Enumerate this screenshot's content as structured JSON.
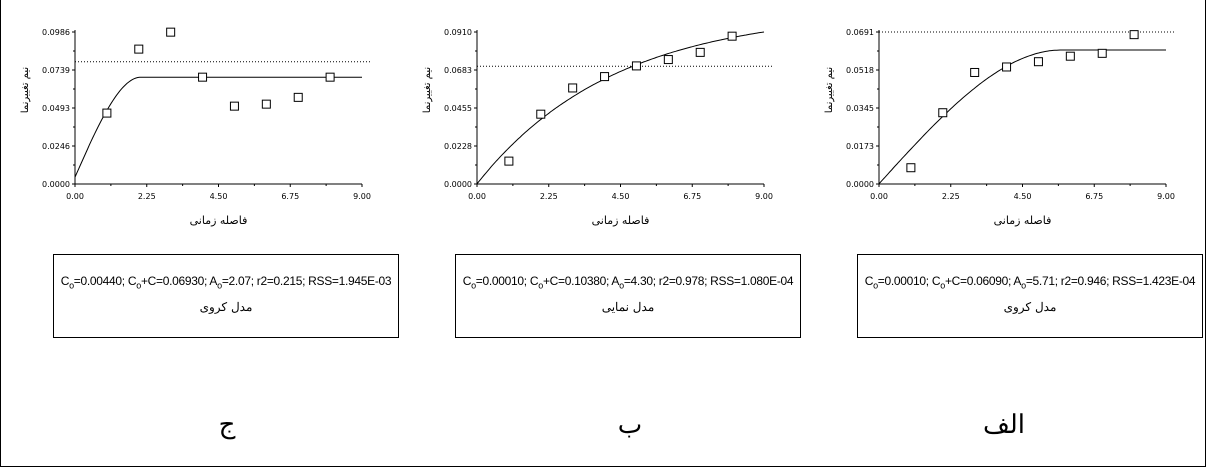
{
  "chart_data": [
    {
      "type": "scatter",
      "panel_label": "ج",
      "xlabel": "فاصله زمانی",
      "ylabel": "نیم تغییرنما",
      "xlim": [
        0,
        9.0
      ],
      "ylim": [
        0,
        0.0986
      ],
      "x_ticks": [
        "0.00",
        "2.25",
        "4.50",
        "6.75",
        "9.00"
      ],
      "y_ticks": [
        "0.0000",
        "0.0246",
        "0.0493",
        "0.0739",
        "0.0986"
      ],
      "variance_line": 0.0793,
      "points": [
        [
          1,
          0.046
        ],
        [
          2,
          0.0875
        ],
        [
          3,
          0.0985
        ],
        [
          4,
          0.0693
        ],
        [
          5,
          0.0505
        ],
        [
          6,
          0.0518
        ],
        [
          7,
          0.0562
        ],
        [
          8,
          0.0693
        ]
      ],
      "model": {
        "kind": "spherical",
        "c0": 0.0044,
        "c0_plus_c": 0.0693,
        "a0": 2.07
      },
      "params_parts": [
        "C",
        "o",
        "=0.00440; C",
        "o",
        "+C=0.06930; A",
        "o",
        "=2.07; r2=0.215;  RSS=1.945E-03"
      ],
      "model_label": "مدل کروی"
    },
    {
      "type": "scatter",
      "panel_label": "ب",
      "xlabel": "فاصله زمانی",
      "ylabel": "نیم تغییرنما",
      "xlim": [
        0,
        9.0
      ],
      "ylim": [
        0,
        0.091
      ],
      "x_ticks": [
        "0.00",
        "2.25",
        "4.50",
        "6.75",
        "9.00"
      ],
      "y_ticks": [
        "0.0000",
        "0.0228",
        "0.0455",
        "0.0683",
        "0.0910"
      ],
      "variance_line": 0.0705,
      "points": [
        [
          1,
          0.0137
        ],
        [
          2,
          0.0418
        ],
        [
          3,
          0.0575
        ],
        [
          4,
          0.0643
        ],
        [
          5,
          0.0707
        ],
        [
          6,
          0.0745
        ],
        [
          7,
          0.0788
        ],
        [
          8,
          0.0885
        ]
      ],
      "model": {
        "kind": "exponential",
        "c0": 0.0001,
        "c0_plus_c": 0.1038,
        "a0": 4.3
      },
      "params_parts": [
        "C",
        "o",
        "=0.00010; C",
        "o",
        "+C=0.10380; A",
        "o",
        "=4.30; r2=0.978;  RSS=1.080E-04"
      ],
      "model_label": "مدل نمایی"
    },
    {
      "type": "scatter",
      "panel_label": "الف",
      "xlabel": "فاصله زمانی",
      "ylabel": "نیم تغییرنما",
      "xlim": [
        0,
        9.0
      ],
      "ylim": [
        0,
        0.0691
      ],
      "x_ticks": [
        "0.00",
        "2.25",
        "4.50",
        "6.75",
        "9.00"
      ],
      "y_ticks": [
        "0.0000",
        "0.0173",
        "0.0345",
        "0.0518",
        "0.0691"
      ],
      "variance_line": 0.0691,
      "points": [
        [
          1,
          0.0074
        ],
        [
          2,
          0.0324
        ],
        [
          3,
          0.0507
        ],
        [
          4,
          0.0532
        ],
        [
          5,
          0.0556
        ],
        [
          6,
          0.0581
        ],
        [
          7,
          0.0594
        ],
        [
          8,
          0.0679
        ]
      ],
      "model": {
        "kind": "spherical",
        "c0": 0.0001,
        "c0_plus_c": 0.0609,
        "a0": 5.71
      },
      "params_parts": [
        "C",
        "o",
        "=0.00010; C",
        "o",
        "+C=0.06090; A",
        "o",
        "=5.71; r2=0.946;  RSS=1.423E-04"
      ],
      "model_label": "مدل کروی"
    }
  ]
}
